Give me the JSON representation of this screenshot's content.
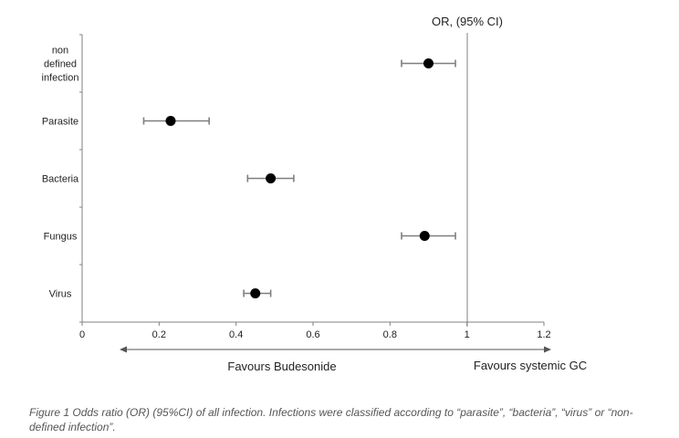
{
  "chart_data": {
    "type": "scatter",
    "subtype": "forest-plot",
    "categories": [
      "non defined infection",
      "Parasite",
      "Bacteria",
      "Fungus",
      "Virus"
    ],
    "category_label_lines": [
      [
        "non",
        "defined",
        "infection"
      ],
      [
        "Parasite"
      ],
      [
        "Bacteria"
      ],
      [
        "Fungus"
      ],
      [
        "Virus"
      ]
    ],
    "series": [
      {
        "values": [
          0.9,
          0.23,
          0.49,
          0.89,
          0.45
        ],
        "ci_low": [
          0.83,
          0.16,
          0.43,
          0.83,
          0.42
        ],
        "ci_high": [
          0.97,
          0.33,
          0.55,
          0.97,
          0.49
        ]
      }
    ],
    "xlim": [
      0,
      1.2
    ],
    "xticks": [
      "0",
      "0.2",
      "0.4",
      "0.6",
      "0.8",
      "1",
      "1.2"
    ],
    "reference_line": 1,
    "annotations": {
      "top": "OR, (95% CI)",
      "left_arrow": "Favours Budesonide",
      "right_arrow": "Favours systemic GC"
    },
    "grid": false,
    "colors": {
      "marker": "#000000",
      "errorbar": "#7f7f7f",
      "axis": "#808080"
    }
  },
  "caption": "Figure 1 Odds ratio (OR) (95%CI) of all infection. Infections were classified according to “parasite”, “bacteria”, “virus” or “non-defined infection”."
}
